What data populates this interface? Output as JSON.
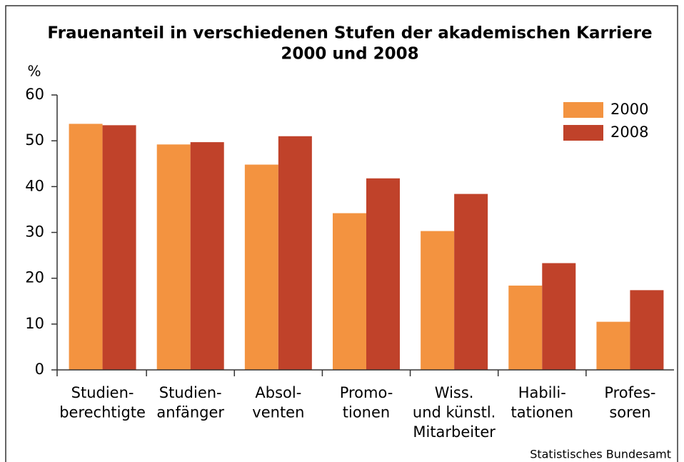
{
  "chart_data": {
    "type": "bar",
    "title": [
      "Frauenanteil in verschiedenen Stufen der akademischen Karriere",
      "2000 und 2008"
    ],
    "y_label": "%",
    "categories": [
      [
        "Studien-",
        "berechtigte"
      ],
      [
        "Studien-",
        "anfänger"
      ],
      [
        "Absol-",
        "venten"
      ],
      [
        "Promo-",
        "tionen"
      ],
      [
        "Wiss.",
        "und künstl.",
        "Mitarbeiter"
      ],
      [
        "Habili-",
        "tationen"
      ],
      [
        "Profes-",
        "soren"
      ]
    ],
    "series": [
      {
        "name": "2000",
        "color": "#f39340",
        "values": [
          53.7,
          49.2,
          44.8,
          34.2,
          30.3,
          18.4,
          10.5
        ]
      },
      {
        "name": "2008",
        "color": "#c0422a",
        "values": [
          53.4,
          49.7,
          51.0,
          41.8,
          38.4,
          23.3,
          17.4
        ]
      }
    ],
    "ylim": [
      0,
      60
    ],
    "yticks": [
      0,
      10,
      20,
      30,
      40,
      50,
      60
    ],
    "legend": "upper right",
    "source": "Statistisches Bundesamt"
  }
}
